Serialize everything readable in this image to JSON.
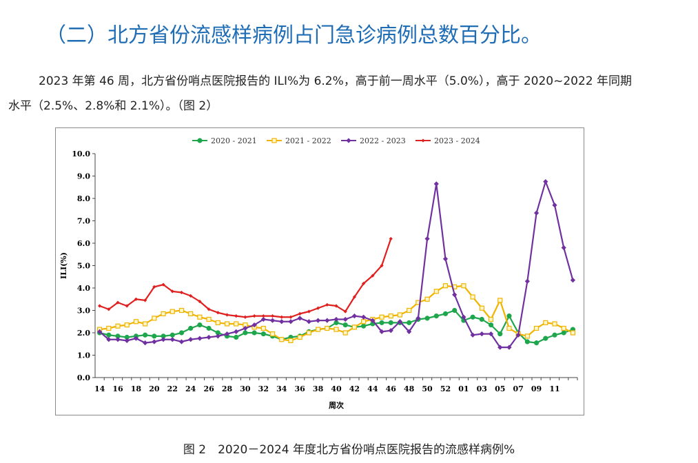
{
  "document": {
    "heading": "（二）北方省份流感样病例占门急诊病例总数百分比。",
    "paragraph": "2023 年第 46 周，北方省份哨点医院报告的 ILI%为 6.2%，高于前一周水平（5.0%），高于 2020~2022 年同期水平（2.5%、2.8%和 2.1%）。（图 2）",
    "caption": "图 2　2020－2024 年度北方省份哨点医院报告的流感样病例%"
  },
  "chart_data": {
    "type": "line",
    "x_label": "周次",
    "y_label": "ILI(%)",
    "categories": [
      "14",
      null,
      "16",
      null,
      "18",
      null,
      "20",
      null,
      "22",
      null,
      "24",
      null,
      "26",
      null,
      "28",
      null,
      "30",
      null,
      "32",
      null,
      "34",
      null,
      "36",
      null,
      "38",
      null,
      "40",
      null,
      "42",
      null,
      "44",
      null,
      "46",
      null,
      "48",
      null,
      "50",
      null,
      "52",
      null,
      "01",
      null,
      "03",
      null,
      "05",
      null,
      "07",
      null,
      "09",
      null,
      "11",
      null,
      null
    ],
    "ylim": [
      0,
      10
    ],
    "yticks": [
      {
        "value": 0,
        "label": "0.0"
      },
      {
        "value": 1,
        "label": "1.0"
      },
      {
        "value": 2,
        "label": "2.0"
      },
      {
        "value": 3,
        "label": "3.0"
      },
      {
        "value": 4,
        "label": "4.0"
      },
      {
        "value": 5,
        "label": "5.0"
      },
      {
        "value": 6,
        "label": "6.0"
      },
      {
        "value": 7,
        "label": "7.0"
      },
      {
        "value": 8,
        "label": "8.0"
      },
      {
        "value": 9,
        "label": "9.0"
      },
      {
        "value": 10,
        "label": "10.0"
      }
    ],
    "legend": "top",
    "series": [
      {
        "name": "2020 - 2021",
        "color": "#1ea64c",
        "marker": "circle",
        "values": [
          2.0,
          1.9,
          1.85,
          1.8,
          1.85,
          1.9,
          1.85,
          1.85,
          1.9,
          2.0,
          2.2,
          2.35,
          2.2,
          2.0,
          1.85,
          1.8,
          2.0,
          2.0,
          1.95,
          1.85,
          1.7,
          1.8,
          1.85,
          2.05,
          2.15,
          2.2,
          2.45,
          2.35,
          2.25,
          2.3,
          2.4,
          2.45,
          2.45,
          2.45,
          2.45,
          2.6,
          2.65,
          2.75,
          2.85,
          3.0,
          2.55,
          2.7,
          2.6,
          2.35,
          1.95,
          2.75,
          2.0,
          1.6,
          1.55,
          1.75,
          1.9,
          2.0,
          2.15
        ]
      },
      {
        "name": "2021 - 2022",
        "color": "#f0b400",
        "marker": "square",
        "values": [
          2.15,
          2.2,
          2.3,
          2.35,
          2.5,
          2.4,
          2.65,
          2.85,
          2.95,
          3.0,
          2.85,
          2.7,
          2.6,
          2.45,
          2.4,
          2.4,
          2.35,
          2.25,
          2.2,
          1.95,
          1.7,
          1.65,
          1.8,
          2.0,
          2.15,
          2.2,
          2.15,
          2.0,
          2.25,
          2.5,
          2.6,
          2.7,
          2.75,
          2.8,
          3.0,
          3.35,
          3.5,
          3.85,
          4.1,
          4.05,
          4.1,
          3.6,
          3.1,
          2.6,
          3.45,
          2.2,
          1.95,
          1.85,
          2.2,
          2.45,
          2.4,
          2.2,
          2.0
        ]
      },
      {
        "name": "2022 - 2023",
        "color": "#7030a0",
        "marker": "diamond",
        "values": [
          2.05,
          1.7,
          1.7,
          1.65,
          1.75,
          1.55,
          1.6,
          1.7,
          1.7,
          1.6,
          1.7,
          1.75,
          1.8,
          1.85,
          1.95,
          2.05,
          2.2,
          2.35,
          2.6,
          2.55,
          2.5,
          2.5,
          2.65,
          2.5,
          2.55,
          2.55,
          2.6,
          2.6,
          2.75,
          2.7,
          2.55,
          2.05,
          2.1,
          2.5,
          2.05,
          2.65,
          6.2,
          8.65,
          5.3,
          3.7,
          2.7,
          1.9,
          1.95,
          1.95,
          1.35,
          1.35,
          1.9,
          4.3,
          7.35,
          8.75,
          7.7,
          5.8,
          4.35
        ]
      },
      {
        "name": "2023 - 2024",
        "color": "#e0201f",
        "marker": "small-diamond",
        "values": [
          3.2,
          3.05,
          3.35,
          3.2,
          3.5,
          3.45,
          4.05,
          4.15,
          3.85,
          3.8,
          3.65,
          3.4,
          3.05,
          2.9,
          2.8,
          2.75,
          2.7,
          2.75,
          2.75,
          2.75,
          2.7,
          2.7,
          2.85,
          2.95,
          3.1,
          3.25,
          3.2,
          2.95,
          3.6,
          4.2,
          4.55,
          5.0,
          6.2,
          null,
          null,
          null,
          null,
          null,
          null,
          null,
          null,
          null,
          null,
          null,
          null,
          null,
          null,
          null,
          null,
          null,
          null,
          null,
          null
        ]
      }
    ]
  }
}
